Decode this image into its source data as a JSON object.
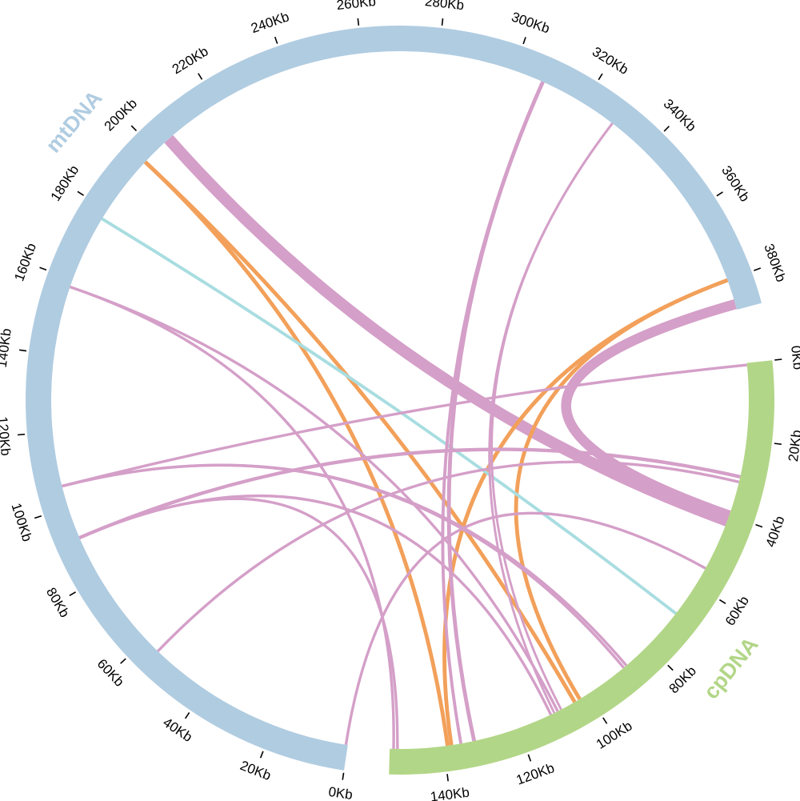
{
  "chromosomes": [
    {
      "id": "mt",
      "name": "mtDNA",
      "length_kb": 388,
      "color": "#b0cce1",
      "ticks": [
        {
          "kb": 0,
          "label": "0Kb"
        },
        {
          "kb": 20,
          "label": "20Kb"
        },
        {
          "kb": 40,
          "label": "40Kb"
        },
        {
          "kb": 60,
          "label": "60Kb"
        },
        {
          "kb": 80,
          "label": "80Kb"
        },
        {
          "kb": 100,
          "label": "100Kb"
        },
        {
          "kb": 120,
          "label": "120Kb"
        },
        {
          "kb": 140,
          "label": "140Kb"
        },
        {
          "kb": 160,
          "label": "160Kb"
        },
        {
          "kb": 180,
          "label": "180Kb"
        },
        {
          "kb": 200,
          "label": "200Kb"
        },
        {
          "kb": 220,
          "label": "220Kb"
        },
        {
          "kb": 240,
          "label": "240Kb"
        },
        {
          "kb": 260,
          "label": "260Kb"
        },
        {
          "kb": 280,
          "label": "280Kb"
        },
        {
          "kb": 300,
          "label": "300Kb"
        },
        {
          "kb": 320,
          "label": "320Kb"
        },
        {
          "kb": 340,
          "label": "340Kb"
        },
        {
          "kb": 360,
          "label": "360Kb"
        },
        {
          "kb": 380,
          "label": "380Kb"
        }
      ]
    },
    {
      "id": "cp",
      "name": "cpDNA",
      "length_kb": 154,
      "color": "#b2d687",
      "ticks": [
        {
          "kb": 0,
          "label": "0Kb"
        },
        {
          "kb": 20,
          "label": "20Kb"
        },
        {
          "kb": 40,
          "label": "40Kb"
        },
        {
          "kb": 60,
          "label": "60Kb"
        },
        {
          "kb": 80,
          "label": "80Kb"
        },
        {
          "kb": 100,
          "label": "100Kb"
        },
        {
          "kb": 120,
          "label": "120Kb"
        },
        {
          "kb": 140,
          "label": "140Kb"
        }
      ]
    }
  ],
  "link_colors": {
    "pink": "#d49fc8",
    "orange": "#f2a05a",
    "cyan": "#a8dde0"
  },
  "links": [
    {
      "mt_kb": 204.5,
      "cp_kb": 41.5,
      "span_kb": 3.0,
      "color": "pink"
    },
    {
      "mt_kb": 386.5,
      "cp_kb": 40.0,
      "span_kb": 2.6,
      "color": "pink"
    },
    {
      "mt_kb": 196,
      "cp_kb": 104,
      "span_kb": 1.0,
      "color": "orange"
    },
    {
      "mt_kb": 196,
      "cp_kb": 139,
      "span_kb": 1.0,
      "color": "orange"
    },
    {
      "mt_kb": 380,
      "cp_kb": 102.5,
      "span_kb": 1.0,
      "color": "orange"
    },
    {
      "mt_kb": 380,
      "cp_kb": 138,
      "span_kb": 1.0,
      "color": "orange"
    },
    {
      "mt_kb": 177.5,
      "cp_kb": 69,
      "span_kb": 0.8,
      "color": "cyan"
    },
    {
      "mt_kb": 308,
      "cp_kb": 132,
      "span_kb": 1.0,
      "color": "pink"
    },
    {
      "mt_kb": 308,
      "cp_kb": 135.5,
      "span_kb": 0.8,
      "color": "pink"
    },
    {
      "mt_kb": 329,
      "cp_kb": 108,
      "span_kb": 0.6,
      "color": "pink"
    },
    {
      "mt_kb": 329,
      "cp_kb": 110,
      "span_kb": 0.6,
      "color": "pink"
    },
    {
      "mt_kb": 158,
      "cp_kb": 109,
      "span_kb": 0.7,
      "color": "pink"
    },
    {
      "mt_kb": 158,
      "cp_kb": 153,
      "span_kb": 0.7,
      "color": "pink"
    },
    {
      "mt_kb": 105.7,
      "cp_kb": 0.5,
      "span_kb": 0.7,
      "color": "pink"
    },
    {
      "mt_kb": 105.7,
      "cp_kb": 87.6,
      "span_kb": 0.7,
      "color": "pink"
    },
    {
      "mt_kb": 91.6,
      "cp_kb": 29.6,
      "span_kb": 0.9,
      "color": "pink"
    },
    {
      "mt_kb": 91.6,
      "cp_kb": 111,
      "span_kb": 0.7,
      "color": "pink"
    },
    {
      "mt_kb": 91.6,
      "cp_kb": 152,
      "span_kb": 0.7,
      "color": "pink"
    },
    {
      "mt_kb": 55.7,
      "cp_kb": 31,
      "span_kb": 0.7,
      "color": "pink"
    },
    {
      "mt_kb": 0.5,
      "cp_kb": 55,
      "span_kb": 0.7,
      "color": "pink"
    },
    {
      "mt_kb": 105.7,
      "cp_kb": 88.5,
      "span_kb": 0.7,
      "color": "pink"
    }
  ]
}
